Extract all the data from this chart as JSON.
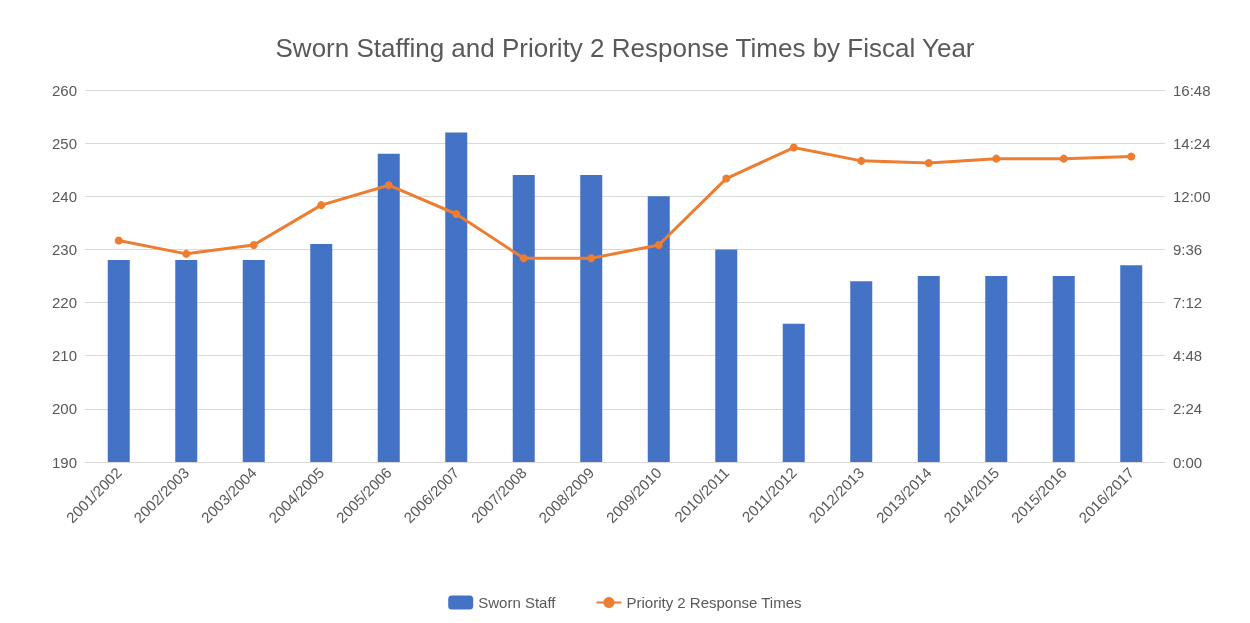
{
  "chart_data": {
    "type": "bar",
    "title": "Sworn Staffing and Priority 2 Response Times by Fiscal Year",
    "categories": [
      "2001/2002",
      "2002/2003",
      "2003/2004",
      "2004/2005",
      "2005/2006",
      "2006/2007",
      "2007/2008",
      "2008/2009",
      "2009/2010",
      "2010/2011",
      "2011/2012",
      "2012/2013",
      "2013/2014",
      "2014/2015",
      "2015/2016",
      "2016/2017"
    ],
    "series": [
      {
        "name": "Sworn Staff",
        "color": "#4472c4",
        "values": [
          228,
          228,
          228,
          231,
          248,
          252,
          244,
          244,
          240,
          230,
          216,
          224,
          225,
          225,
          225,
          227
        ]
      },
      {
        "name": "Priority 2 Response Times",
        "type": "line",
        "axis": "y2",
        "color": "#ed7d31",
        "values": [
          10.0,
          9.4,
          9.8,
          11.6,
          12.5,
          11.2,
          9.2,
          9.2,
          9.8,
          12.8,
          14.2,
          13.6,
          13.5,
          13.7,
          13.7,
          13.8
        ]
      }
    ],
    "ylim": [
      190,
      260
    ],
    "yticks": [
      190,
      200,
      210,
      220,
      230,
      240,
      250,
      260
    ],
    "y2lim": [
      0,
      16.8
    ],
    "y2ticks": [
      {
        "value": 0,
        "label": "0:00"
      },
      {
        "value": 2.4,
        "label": "2:24"
      },
      {
        "value": 4.8,
        "label": "4:48"
      },
      {
        "value": 7.2,
        "label": "7:12"
      },
      {
        "value": 9.6,
        "label": "9:36"
      },
      {
        "value": 12,
        "label": "12:00"
      },
      {
        "value": 14.4,
        "label": "14:24"
      },
      {
        "value": 16.8,
        "label": "16:48"
      }
    ],
    "grid": "y",
    "legend": "bottom",
    "marker": "circle",
    "line_style": "solid"
  }
}
